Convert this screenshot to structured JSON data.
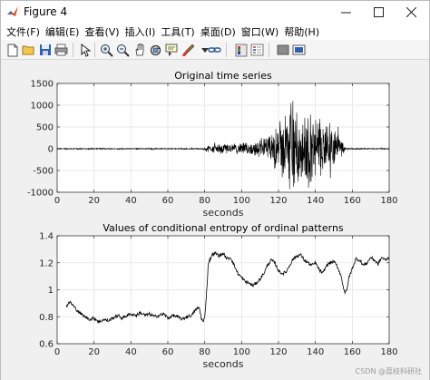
{
  "window": {
    "title": "Figure 4"
  },
  "menu": [
    {
      "label": "文件(F)"
    },
    {
      "label": "编辑(E)"
    },
    {
      "label": "查看(V)"
    },
    {
      "label": "插入(I)"
    },
    {
      "label": "工具(T)"
    },
    {
      "label": "桌面(D)"
    },
    {
      "label": "窗口(W)"
    },
    {
      "label": "帮助(H)"
    }
  ],
  "toolbar": {
    "icons": [
      "new-figure-icon",
      "open-folder-icon",
      "save-icon",
      "print-icon",
      "pointer-icon",
      "zoom-in-icon",
      "zoom-out-icon",
      "pan-icon",
      "rotate-3d-icon",
      "data-cursor-icon",
      "brush-icon",
      "link-icon",
      "colorbar-icon",
      "legend-icon",
      "hide-plot-tools-icon",
      "show-plot-tools-icon"
    ]
  },
  "watermark": "CSDN @荔枝科研社",
  "chart_data": [
    {
      "type": "line",
      "title": "Original time series",
      "xlabel": "seconds",
      "ylabel": "",
      "xlim": [
        0,
        180
      ],
      "ylim": [
        -1000,
        1500
      ],
      "xticks": [
        "0",
        "20",
        "40",
        "60",
        "80",
        "100",
        "120",
        "140",
        "160",
        "180"
      ],
      "yticks": [
        "-1000",
        "-500",
        "0",
        "500",
        "1000",
        "1500"
      ],
      "grid": true,
      "envelope": {
        "x": [
          0,
          20,
          40,
          60,
          78,
          80,
          82,
          90,
          100,
          105,
          110,
          115,
          118,
          120,
          122,
          125,
          128,
          130,
          133,
          135,
          138,
          140,
          143,
          145,
          148,
          150,
          153,
          155,
          156,
          160,
          170,
          180
        ],
        "amp": [
          15,
          15,
          15,
          15,
          15,
          40,
          110,
          120,
          140,
          160,
          210,
          330,
          480,
          700,
          880,
          1000,
          1180,
          1100,
          1000,
          1050,
          900,
          780,
          720,
          640,
          560,
          520,
          440,
          200,
          40,
          20,
          15,
          15
        ]
      },
      "series": [
        {
          "name": "",
          "color": "#000000"
        }
      ]
    },
    {
      "type": "line",
      "title": "Values of conditional entropy of ordinal patterns",
      "xlabel": "seconds",
      "ylabel": "",
      "xlim": [
        0,
        180
      ],
      "ylim": [
        0.6,
        1.4
      ],
      "xticks": [
        "0",
        "20",
        "40",
        "60",
        "80",
        "100",
        "120",
        "140",
        "160",
        "180"
      ],
      "yticks": [
        "0.6",
        "0.8",
        "1",
        "1.2",
        "1.4"
      ],
      "grid": true,
      "series": [
        {
          "name": "",
          "color": "#000000",
          "x": [
            5,
            7,
            10,
            13,
            15,
            18,
            20,
            23,
            25,
            28,
            30,
            33,
            35,
            38,
            40,
            43,
            45,
            48,
            50,
            53,
            55,
            58,
            60,
            63,
            65,
            68,
            70,
            73,
            75,
            77,
            78,
            79,
            80,
            81,
            82,
            84,
            86,
            88,
            90,
            92,
            94,
            96,
            98,
            100,
            102,
            104,
            106,
            108,
            110,
            112,
            114,
            116,
            118,
            120,
            122,
            124,
            126,
            128,
            130,
            132,
            134,
            136,
            138,
            140,
            142,
            144,
            146,
            148,
            150,
            152,
            154,
            155,
            156,
            157,
            158,
            160,
            162,
            164,
            166,
            168,
            170,
            172,
            174,
            176,
            178,
            180
          ],
          "y": [
            0.88,
            0.91,
            0.86,
            0.82,
            0.8,
            0.78,
            0.79,
            0.76,
            0.78,
            0.77,
            0.79,
            0.81,
            0.79,
            0.81,
            0.82,
            0.81,
            0.83,
            0.81,
            0.82,
            0.8,
            0.81,
            0.82,
            0.79,
            0.81,
            0.8,
            0.78,
            0.8,
            0.81,
            0.85,
            0.87,
            0.8,
            0.76,
            0.79,
            0.98,
            1.2,
            1.26,
            1.27,
            1.25,
            1.27,
            1.23,
            1.24,
            1.18,
            1.12,
            1.09,
            1.06,
            1.05,
            1.03,
            1.05,
            1.08,
            1.12,
            1.18,
            1.22,
            1.2,
            1.14,
            1.12,
            1.13,
            1.18,
            1.23,
            1.25,
            1.26,
            1.22,
            1.2,
            1.18,
            1.2,
            1.15,
            1.12,
            1.18,
            1.2,
            1.21,
            1.17,
            1.1,
            1.03,
            0.98,
            0.99,
            1.08,
            1.16,
            1.23,
            1.22,
            1.18,
            1.2,
            1.24,
            1.22,
            1.19,
            1.24,
            1.22,
            1.24
          ]
        }
      ]
    }
  ]
}
